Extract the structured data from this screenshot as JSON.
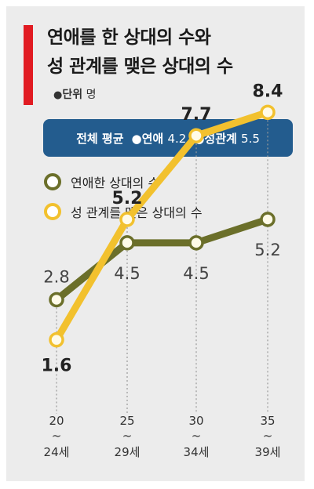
{
  "title_line1": "연애를 한 상대의 수와",
  "title_line2": "성 관계를 맺은 상대의 수",
  "unit": {
    "bullet": "●",
    "label": "단위",
    "value": "명"
  },
  "average": {
    "label": "전체 평균",
    "items": [
      {
        "bullet": "●",
        "name": "연애",
        "value": "4.2"
      },
      {
        "bullet": "●",
        "name": "성관계",
        "value": "5.5"
      }
    ]
  },
  "colors": {
    "series1": "#6b6f2a",
    "series2": "#f2c12e",
    "accent": "#e11b22",
    "box": "#235c8e"
  },
  "chart_data": {
    "type": "line",
    "categories": [
      "20~24세",
      "25~29세",
      "30~34세",
      "35~39세"
    ],
    "category_lines": [
      [
        "20",
        "~",
        "24세"
      ],
      [
        "25",
        "~",
        "29세"
      ],
      [
        "30",
        "~",
        "34세"
      ],
      [
        "35",
        "~",
        "39세"
      ]
    ],
    "series": [
      {
        "name": "연애한 상대의 수",
        "values": [
          2.8,
          4.5,
          4.5,
          5.2
        ],
        "labels": [
          "2.8",
          "4.5",
          "4.5",
          "5.2"
        ]
      },
      {
        "name": "성 관계를 맺은 상대의 수",
        "values": [
          1.6,
          5.2,
          7.7,
          8.4
        ],
        "labels": [
          "1.6",
          "5.2",
          "7.7",
          "8.4"
        ]
      }
    ],
    "ylim": [
      0,
      10
    ],
    "legend": "top-left"
  }
}
